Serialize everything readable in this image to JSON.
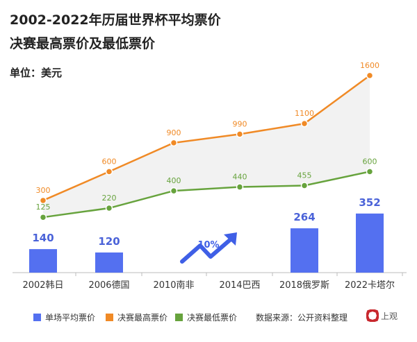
{
  "chart_data": {
    "type": "bar+line",
    "title": "2002-2022年历届世界杯平均票价",
    "subtitle": "决赛最高票价及最低票价",
    "unit": "单位：美元",
    "categories": [
      "2002韩日",
      "2006德国",
      "2010南非",
      "2014巴西",
      "2018俄罗斯",
      "2022卡塔尔"
    ],
    "series": [
      {
        "name": "单场平均票价",
        "type": "bar",
        "color": "#5470f0",
        "values": [
          140,
          120,
          null,
          null,
          264,
          352
        ]
      },
      {
        "name": "决赛最高票价",
        "type": "line",
        "color": "#f08a26",
        "values": [
          300,
          600,
          900,
          990,
          1100,
          1600
        ]
      },
      {
        "name": "决赛最低票价",
        "type": "line",
        "color": "#67a33d",
        "values": [
          125,
          220,
          400,
          440,
          455,
          600
        ]
      }
    ],
    "annotation": "10%",
    "source": "数据来源：公开资料整理",
    "logo": "上观 Shanghai Observer"
  }
}
